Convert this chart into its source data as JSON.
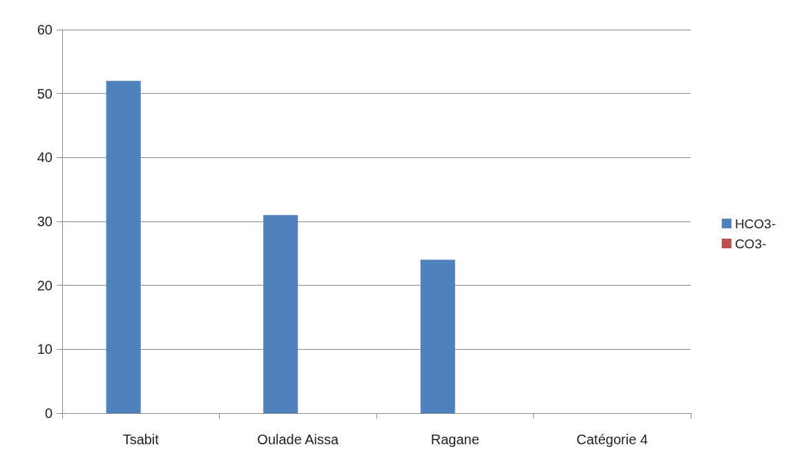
{
  "chart_data": {
    "type": "bar",
    "categories": [
      "Tsabit",
      "Oulade Aissa",
      "Ragane",
      "Catégorie 4"
    ],
    "series": [
      {
        "name": "HCO3-",
        "color": "#4f81bd",
        "values": [
          52,
          31,
          24,
          null
        ]
      },
      {
        "name": "CO3-",
        "color": "#c0504d",
        "values": [
          0,
          0,
          0,
          null
        ]
      }
    ],
    "ylim": [
      0,
      60
    ],
    "yticks": [
      0,
      10,
      20,
      30,
      40,
      50,
      60
    ],
    "grid": "y",
    "legend": "right"
  }
}
